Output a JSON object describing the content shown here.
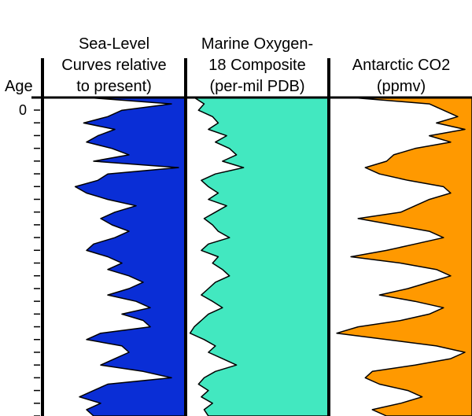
{
  "chart_data": {
    "type": "area",
    "age_axis": {
      "label": "Age",
      "tick_labels": [
        "0"
      ],
      "grid": false
    },
    "panels": [
      {
        "title_lines": [
          "Sea-Level",
          "Curves relative",
          "to present)"
        ],
        "fill_color": "#0a2ed6",
        "fill_side": "right",
        "series": [
          [
            0.0,
            0.3
          ],
          [
            0.02,
            0.9
          ],
          [
            0.04,
            0.55
          ],
          [
            0.06,
            0.45
          ],
          [
            0.08,
            0.28
          ],
          [
            0.1,
            0.5
          ],
          [
            0.12,
            0.38
          ],
          [
            0.14,
            0.3
          ],
          [
            0.16,
            0.48
          ],
          [
            0.18,
            0.6
          ],
          [
            0.2,
            0.35
          ],
          [
            0.22,
            0.95
          ],
          [
            0.24,
            0.45
          ],
          [
            0.26,
            0.38
          ],
          [
            0.28,
            0.22
          ],
          [
            0.3,
            0.3
          ],
          [
            0.32,
            0.45
          ],
          [
            0.34,
            0.65
          ],
          [
            0.36,
            0.5
          ],
          [
            0.38,
            0.4
          ],
          [
            0.4,
            0.48
          ],
          [
            0.42,
            0.6
          ],
          [
            0.44,
            0.5
          ],
          [
            0.46,
            0.35
          ],
          [
            0.48,
            0.3
          ],
          [
            0.5,
            0.45
          ],
          [
            0.52,
            0.55
          ],
          [
            0.54,
            0.45
          ],
          [
            0.56,
            0.6
          ],
          [
            0.58,
            0.7
          ],
          [
            0.6,
            0.6
          ],
          [
            0.62,
            0.45
          ],
          [
            0.64,
            0.65
          ],
          [
            0.66,
            0.75
          ],
          [
            0.68,
            0.55
          ],
          [
            0.7,
            0.7
          ],
          [
            0.72,
            0.75
          ],
          [
            0.74,
            0.4
          ],
          [
            0.76,
            0.3
          ],
          [
            0.78,
            0.55
          ],
          [
            0.8,
            0.6
          ],
          [
            0.82,
            0.5
          ],
          [
            0.84,
            0.4
          ],
          [
            0.86,
            0.7
          ],
          [
            0.88,
            0.9
          ],
          [
            0.9,
            0.45
          ],
          [
            0.92,
            0.35
          ],
          [
            0.94,
            0.25
          ],
          [
            0.96,
            0.4
          ],
          [
            0.98,
            0.3
          ],
          [
            1.0,
            0.35
          ]
        ]
      },
      {
        "title_lines": [
          "Marine Oxygen-",
          "18 Composite",
          "(per-mil PDB)"
        ],
        "fill_color": "#42e8c0",
        "fill_side": "right",
        "series": [
          [
            0.0,
            0.05
          ],
          [
            0.02,
            0.12
          ],
          [
            0.04,
            0.08
          ],
          [
            0.06,
            0.18
          ],
          [
            0.08,
            0.22
          ],
          [
            0.1,
            0.15
          ],
          [
            0.12,
            0.28
          ],
          [
            0.14,
            0.2
          ],
          [
            0.16,
            0.3
          ],
          [
            0.18,
            0.35
          ],
          [
            0.2,
            0.25
          ],
          [
            0.22,
            0.4
          ],
          [
            0.24,
            0.2
          ],
          [
            0.26,
            0.1
          ],
          [
            0.28,
            0.15
          ],
          [
            0.3,
            0.22
          ],
          [
            0.32,
            0.15
          ],
          [
            0.34,
            0.28
          ],
          [
            0.36,
            0.2
          ],
          [
            0.38,
            0.12
          ],
          [
            0.4,
            0.18
          ],
          [
            0.42,
            0.22
          ],
          [
            0.44,
            0.3
          ],
          [
            0.46,
            0.15
          ],
          [
            0.48,
            0.1
          ],
          [
            0.5,
            0.22
          ],
          [
            0.52,
            0.18
          ],
          [
            0.54,
            0.25
          ],
          [
            0.56,
            0.3
          ],
          [
            0.58,
            0.2
          ],
          [
            0.6,
            0.15
          ],
          [
            0.62,
            0.1
          ],
          [
            0.64,
            0.18
          ],
          [
            0.66,
            0.25
          ],
          [
            0.68,
            0.15
          ],
          [
            0.7,
            0.1
          ],
          [
            0.72,
            0.05
          ],
          [
            0.74,
            0.02
          ],
          [
            0.76,
            0.12
          ],
          [
            0.78,
            0.2
          ],
          [
            0.8,
            0.15
          ],
          [
            0.82,
            0.25
          ],
          [
            0.84,
            0.35
          ],
          [
            0.86,
            0.2
          ],
          [
            0.88,
            0.12
          ],
          [
            0.9,
            0.08
          ],
          [
            0.92,
            0.15
          ],
          [
            0.94,
            0.1
          ],
          [
            0.96,
            0.18
          ],
          [
            0.98,
            0.12
          ],
          [
            1.0,
            0.15
          ]
        ]
      },
      {
        "title_lines": [
          "Antarctic CO2",
          "(ppmv)"
        ],
        "fill_color": "#ff9900",
        "fill_side": "right",
        "series": [
          [
            0.0,
            0.15
          ],
          [
            0.02,
            0.7
          ],
          [
            0.04,
            0.8
          ],
          [
            0.06,
            0.9
          ],
          [
            0.08,
            0.75
          ],
          [
            0.1,
            0.95
          ],
          [
            0.12,
            0.7
          ],
          [
            0.14,
            0.85
          ],
          [
            0.16,
            0.6
          ],
          [
            0.18,
            0.45
          ],
          [
            0.2,
            0.4
          ],
          [
            0.22,
            0.25
          ],
          [
            0.24,
            0.35
          ],
          [
            0.26,
            0.55
          ],
          [
            0.28,
            0.8
          ],
          [
            0.3,
            0.85
          ],
          [
            0.32,
            0.7
          ],
          [
            0.34,
            0.6
          ],
          [
            0.36,
            0.5
          ],
          [
            0.38,
            0.2
          ],
          [
            0.4,
            0.45
          ],
          [
            0.42,
            0.7
          ],
          [
            0.44,
            0.8
          ],
          [
            0.46,
            0.6
          ],
          [
            0.48,
            0.4
          ],
          [
            0.5,
            0.15
          ],
          [
            0.52,
            0.5
          ],
          [
            0.54,
            0.75
          ],
          [
            0.56,
            0.85
          ],
          [
            0.58,
            0.7
          ],
          [
            0.6,
            0.55
          ],
          [
            0.62,
            0.35
          ],
          [
            0.64,
            0.6
          ],
          [
            0.66,
            0.8
          ],
          [
            0.68,
            0.7
          ],
          [
            0.7,
            0.5
          ],
          [
            0.72,
            0.2
          ],
          [
            0.74,
            0.05
          ],
          [
            0.76,
            0.4
          ],
          [
            0.78,
            0.75
          ],
          [
            0.8,
            0.95
          ],
          [
            0.82,
            0.85
          ],
          [
            0.84,
            0.6
          ],
          [
            0.86,
            0.3
          ],
          [
            0.88,
            0.25
          ],
          [
            0.9,
            0.35
          ],
          [
            0.92,
            0.55
          ],
          [
            0.94,
            0.65
          ],
          [
            0.96,
            0.5
          ],
          [
            0.98,
            0.3
          ],
          [
            1.0,
            0.4
          ]
        ]
      }
    ]
  }
}
